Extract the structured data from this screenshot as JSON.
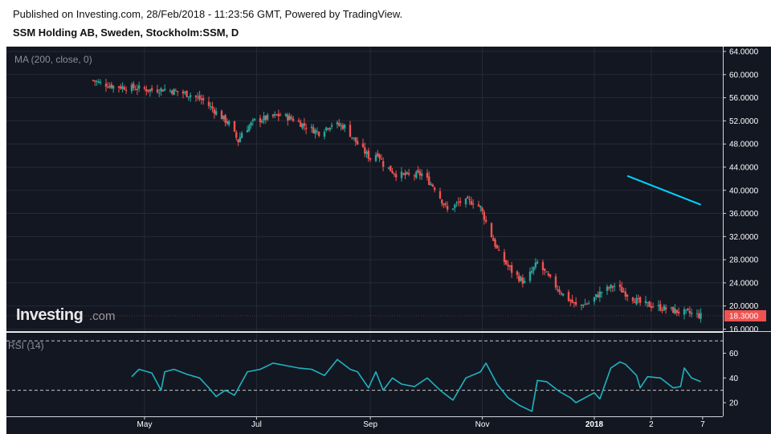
{
  "header": {
    "published": "Published on Investing.com, 28/Feb/2018 - 11:23:56 GMT, Powered by TradingView.",
    "symbol": "SSM Holding AB, Sweden, Stockholm:SSM, D"
  },
  "logo": {
    "main": "Investing",
    "suffix": ".com"
  },
  "colors": {
    "background": "#131722",
    "grid": "#252a36",
    "up": "#26a69a",
    "down": "#ef5350",
    "ma_line": "#00d4ff",
    "rsi_line": "#1fb3c0",
    "price_tag": "#ef5350"
  },
  "chart_data": [
    {
      "type": "candlestick",
      "indicator_label": "MA (200, close, 0)",
      "last_price_label": "18.3000",
      "ylim": [
        16,
        64
      ],
      "y_ticks": [
        "64.0000",
        "60.0000",
        "56.0000",
        "52.0000",
        "48.0000",
        "44.0000",
        "40.0000",
        "36.0000",
        "32.0000",
        "28.0000",
        "24.0000",
        "20.0000",
        "16.0000"
      ],
      "x_ticks": [
        {
          "label": "May",
          "bold": false
        },
        {
          "label": "Jul",
          "bold": false
        },
        {
          "label": "Sep",
          "bold": false
        },
        {
          "label": "Nov",
          "bold": false
        },
        {
          "label": "2018",
          "bold": true
        },
        {
          "label": "2",
          "bold": false
        },
        {
          "label": "7",
          "bold": false
        }
      ],
      "close_path": [
        [
          "2017-04-03",
          59.0
        ],
        [
          "2017-04-07",
          58.5
        ],
        [
          "2017-04-14",
          58.0
        ],
        [
          "2017-04-21",
          57.8
        ],
        [
          "2017-04-28",
          57.6
        ],
        [
          "2017-05-05",
          57.3
        ],
        [
          "2017-05-12",
          57.5
        ],
        [
          "2017-05-19",
          57.0
        ],
        [
          "2017-05-26",
          56.5
        ],
        [
          "2017-06-02",
          55.5
        ],
        [
          "2017-06-09",
          53.5
        ],
        [
          "2017-06-16",
          51.5
        ],
        [
          "2017-06-21",
          48.5
        ],
        [
          "2017-06-23",
          50.0
        ],
        [
          "2017-06-30",
          52.0
        ],
        [
          "2017-07-07",
          52.5
        ],
        [
          "2017-07-14",
          53.0
        ],
        [
          "2017-07-21",
          52.3
        ],
        [
          "2017-07-28",
          51.0
        ],
        [
          "2017-08-04",
          50.0
        ],
        [
          "2017-08-11",
          51.5
        ],
        [
          "2017-08-18",
          51.0
        ],
        [
          "2017-08-25",
          48.0
        ],
        [
          "2017-09-01",
          45.5
        ],
        [
          "2017-09-05",
          46.5
        ],
        [
          "2017-09-08",
          44.5
        ],
        [
          "2017-09-15",
          42.8
        ],
        [
          "2017-09-22",
          42.5
        ],
        [
          "2017-09-29",
          42.8
        ],
        [
          "2017-10-06",
          40.5
        ],
        [
          "2017-10-13",
          36.5
        ],
        [
          "2017-10-20",
          38.0
        ],
        [
          "2017-10-27",
          38.0
        ],
        [
          "2017-10-31",
          37.0
        ],
        [
          "2017-11-03",
          34.5
        ],
        [
          "2017-11-10",
          29.0
        ],
        [
          "2017-11-17",
          26.0
        ],
        [
          "2017-11-24",
          24.0
        ],
        [
          "2017-12-01",
          27.5
        ],
        [
          "2017-12-08",
          24.5
        ],
        [
          "2017-12-15",
          22.0
        ],
        [
          "2017-12-22",
          20.0
        ],
        [
          "2017-12-29",
          20.5
        ],
        [
          "2018-01-05",
          22.5
        ],
        [
          "2018-01-12",
          23.5
        ],
        [
          "2018-01-19",
          22.0
        ],
        [
          "2018-01-26",
          20.5
        ],
        [
          "2018-02-02",
          20.0
        ],
        [
          "2018-02-09",
          19.5
        ],
        [
          "2018-02-16",
          19.0
        ],
        [
          "2018-02-23",
          18.7
        ],
        [
          "2018-02-28",
          18.3
        ]
      ],
      "ma_200": [
        [
          "2018-01-19",
          42.5
        ],
        [
          "2018-02-28",
          37.5
        ]
      ]
    },
    {
      "type": "line",
      "indicator_label": "RSI (14)",
      "ylim": [
        10,
        70
      ],
      "y_ticks": [
        "60",
        "40",
        "20"
      ],
      "reference_lines": [
        70,
        30
      ],
      "series": [
        [
          "2017-04-24",
          41
        ],
        [
          "2017-04-28",
          47
        ],
        [
          "2017-05-05",
          44
        ],
        [
          "2017-05-10",
          30
        ],
        [
          "2017-05-12",
          45
        ],
        [
          "2017-05-17",
          47
        ],
        [
          "2017-05-24",
          43
        ],
        [
          "2017-05-31",
          40
        ],
        [
          "2017-06-05",
          32
        ],
        [
          "2017-06-09",
          25
        ],
        [
          "2017-06-14",
          30
        ],
        [
          "2017-06-19",
          26
        ],
        [
          "2017-06-26",
          45
        ],
        [
          "2017-07-03",
          47
        ],
        [
          "2017-07-10",
          52
        ],
        [
          "2017-07-17",
          50
        ],
        [
          "2017-07-24",
          48
        ],
        [
          "2017-07-31",
          47
        ],
        [
          "2017-08-07",
          42
        ],
        [
          "2017-08-14",
          55
        ],
        [
          "2017-08-21",
          47
        ],
        [
          "2017-08-25",
          45
        ],
        [
          "2017-08-31",
          32
        ],
        [
          "2017-09-04",
          45
        ],
        [
          "2017-09-08",
          30
        ],
        [
          "2017-09-13",
          40
        ],
        [
          "2017-09-18",
          35
        ],
        [
          "2017-09-25",
          33
        ],
        [
          "2017-10-02",
          40
        ],
        [
          "2017-10-09",
          30
        ],
        [
          "2017-10-16",
          22
        ],
        [
          "2017-10-23",
          40
        ],
        [
          "2017-10-31",
          45
        ],
        [
          "2017-11-03",
          52
        ],
        [
          "2017-11-09",
          35
        ],
        [
          "2017-11-15",
          24
        ],
        [
          "2017-11-21",
          18
        ],
        [
          "2017-11-28",
          13
        ],
        [
          "2017-12-01",
          38
        ],
        [
          "2017-12-06",
          37
        ],
        [
          "2017-12-13",
          29
        ],
        [
          "2017-12-19",
          24
        ],
        [
          "2017-12-22",
          20
        ],
        [
          "2018-01-01",
          28
        ],
        [
          "2018-01-04",
          23
        ],
        [
          "2018-01-10",
          48
        ],
        [
          "2018-01-15",
          53
        ],
        [
          "2018-01-18",
          51
        ],
        [
          "2018-01-24",
          42
        ],
        [
          "2018-01-26",
          32
        ],
        [
          "2018-01-30",
          41
        ],
        [
          "2018-02-06",
          40
        ],
        [
          "2018-02-13",
          32
        ],
        [
          "2018-02-17",
          33
        ],
        [
          "2018-02-19",
          48
        ],
        [
          "2018-02-23",
          40
        ],
        [
          "2018-02-28",
          37
        ]
      ]
    }
  ]
}
